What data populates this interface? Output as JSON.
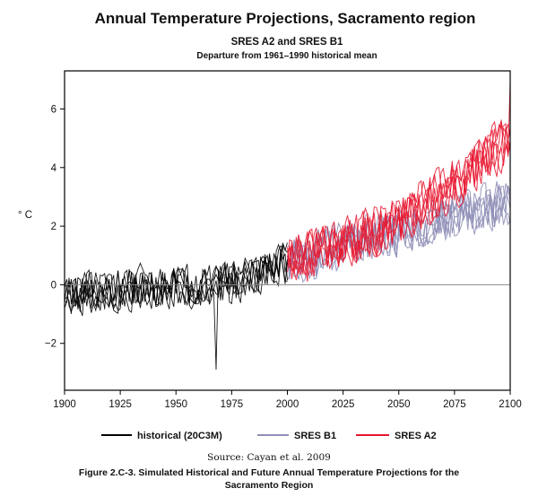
{
  "chart_data": {
    "type": "line",
    "title": "Annual Temperature Projections, Sacramento region",
    "subtitle": "SRES A2 and SRES B1",
    "subtitle2": "Departure from 1961–1990 historical mean",
    "ylabel": "° C",
    "xlabel": "",
    "xlim": [
      1900,
      2100
    ],
    "ylim": [
      -3.6,
      7.3
    ],
    "x_ticks": [
      "1900",
      "1925",
      "1950",
      "1975",
      "2000",
      "2025",
      "2050",
      "2075",
      "2100"
    ],
    "y_ticks": [
      "−2",
      "0",
      "2",
      "4",
      "6"
    ],
    "zero_line": 0,
    "grid": false,
    "legend_position": "bottom",
    "series": [
      {
        "name": "historical (20C3M)",
        "color": "#000000",
        "x_range": [
          1900,
          2000
        ],
        "ensemble_members": 6,
        "trend": [
          [
            1900,
            -0.3
          ],
          [
            1950,
            0.0
          ],
          [
            1975,
            0.0
          ],
          [
            2000,
            0.7
          ]
        ],
        "spread": 1.0
      },
      {
        "name": "SRES B1",
        "color": "#8f8fb8",
        "x_range": [
          2000,
          2100
        ],
        "ensemble_members": 6,
        "trend": [
          [
            2000,
            0.7
          ],
          [
            2025,
            1.3
          ],
          [
            2050,
            1.8
          ],
          [
            2075,
            2.4
          ],
          [
            2100,
            2.8
          ]
        ],
        "spread": 1.1
      },
      {
        "name": "SRES A2",
        "color": "#e8152e",
        "x_range": [
          2000,
          2100
        ],
        "ensemble_members": 6,
        "trend": [
          [
            2000,
            0.8
          ],
          [
            2025,
            1.4
          ],
          [
            2050,
            2.2
          ],
          [
            2075,
            3.5
          ],
          [
            2100,
            5.0
          ]
        ],
        "spread": 1.2
      }
    ]
  },
  "source_text": "Source: Cayan et al. 2009",
  "caption_line1": "Figure 2.C-3. Simulated Historical and Future Annual Temperature Projections for the",
  "caption_line2": "Sacramento Region"
}
